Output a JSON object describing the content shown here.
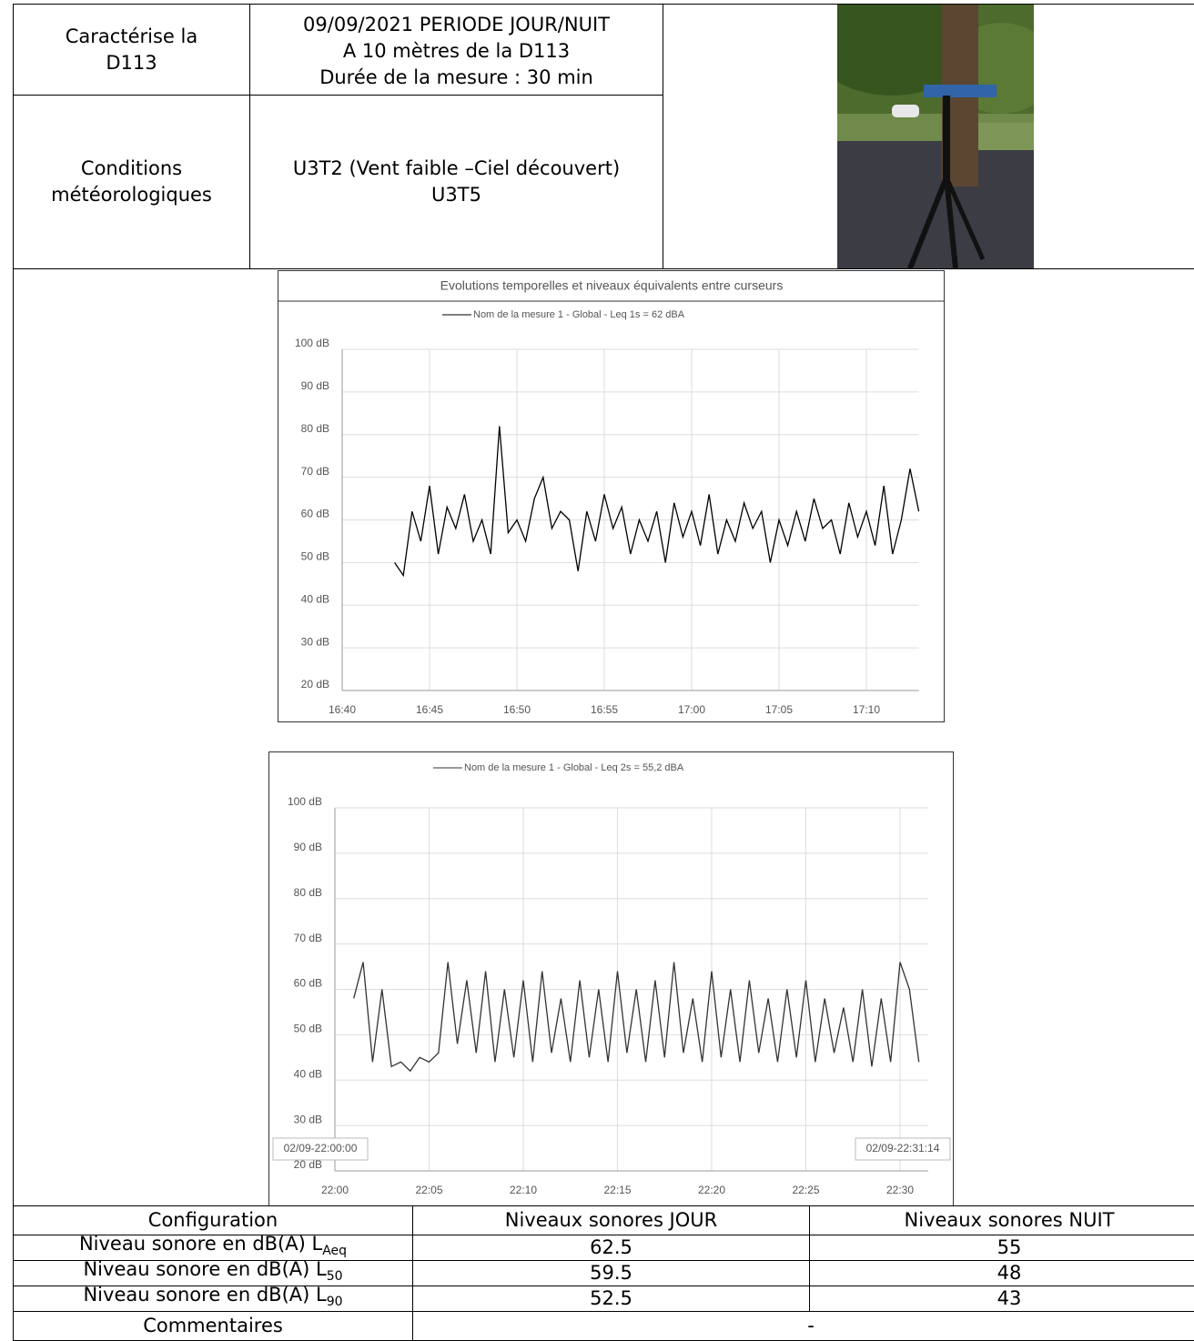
{
  "header": {
    "subject": [
      "Caractérise la",
      "D113"
    ],
    "measure": [
      "09/09/2021 PERIODE JOUR/NUIT",
      "A 10 mètres de la D113",
      "Durée de la mesure : 30 min"
    ],
    "weather_label": [
      "Conditions",
      "météorologiques"
    ],
    "weather": [
      "U3T2 (Vent faible –Ciel découvert)",
      "U3T5"
    ]
  },
  "chart_data": [
    {
      "type": "line",
      "title": "Evolutions temporelles et niveaux équivalents entre curseurs",
      "grid": true,
      "xlim": [
        0,
        33
      ],
      "xticks": [
        {
          "value": 0,
          "label": "16:40"
        },
        {
          "value": 5,
          "label": "16:45"
        },
        {
          "value": 10,
          "label": "16:50"
        },
        {
          "value": 15,
          "label": "16:55"
        },
        {
          "value": 20,
          "label": "17:00"
        },
        {
          "value": 25,
          "label": "17:05"
        },
        {
          "value": 30,
          "label": "17:10"
        }
      ],
      "ylim": [
        20,
        100
      ],
      "yticks": [
        {
          "value": 20,
          "label": "20 dB"
        },
        {
          "value": 30,
          "label": "30 dB"
        },
        {
          "value": 40,
          "label": "40 dB"
        },
        {
          "value": 50,
          "label": "50 dB"
        },
        {
          "value": 60,
          "label": "60 dB"
        },
        {
          "value": 70,
          "label": "70 dB"
        },
        {
          "value": 80,
          "label": "80 dB"
        },
        {
          "value": 90,
          "label": "90 dB"
        },
        {
          "value": 100,
          "label": "100 dB"
        }
      ],
      "x": [
        3,
        3.5,
        4,
        4.5,
        5,
        5.5,
        6,
        6.5,
        7,
        7.5,
        8,
        8.5,
        9,
        9.5,
        10,
        10.5,
        11,
        11.5,
        12,
        12.5,
        13,
        13.5,
        14,
        14.5,
        15,
        15.5,
        16,
        16.5,
        17,
        17.5,
        18,
        18.5,
        19,
        19.5,
        20,
        20.5,
        21,
        21.5,
        22,
        22.5,
        23,
        23.5,
        24,
        24.5,
        25,
        25.5,
        26,
        26.5,
        27,
        27.5,
        28,
        28.5,
        29,
        29.5,
        30,
        30.5,
        31,
        31.5,
        32,
        32.5,
        33
      ],
      "series": [
        {
          "name": "Nom de la mesure 1 - Global - Leq 1s = 62 dBA",
          "color": "#000000",
          "values": [
            50,
            47,
            62,
            55,
            68,
            52,
            63,
            58,
            66,
            55,
            60,
            52,
            82,
            57,
            60,
            55,
            65,
            70,
            58,
            62,
            60,
            48,
            62,
            55,
            66,
            58,
            63,
            52,
            60,
            55,
            62,
            50,
            64,
            56,
            62,
            54,
            66,
            52,
            60,
            55,
            64,
            58,
            62,
            50,
            60,
            54,
            62,
            55,
            65,
            58,
            60,
            52,
            64,
            56,
            62,
            54,
            68,
            52,
            60,
            72,
            62
          ]
        }
      ]
    },
    {
      "type": "line",
      "grid": true,
      "annotations": [
        "02/09-22:00:00",
        "02/09-22:31:14"
      ],
      "xlim": [
        0,
        31.5
      ],
      "xticks": [
        {
          "value": 0,
          "label": "22:00"
        },
        {
          "value": 5,
          "label": "22:05"
        },
        {
          "value": 10,
          "label": "22:10"
        },
        {
          "value": 15,
          "label": "22:15"
        },
        {
          "value": 20,
          "label": "22:20"
        },
        {
          "value": 25,
          "label": "22:25"
        },
        {
          "value": 30,
          "label": "22:30"
        }
      ],
      "ylim": [
        20,
        100
      ],
      "yticks": [
        {
          "value": 20,
          "label": "20 dB"
        },
        {
          "value": 30,
          "label": "30 dB"
        },
        {
          "value": 40,
          "label": "40 dB"
        },
        {
          "value": 50,
          "label": "50 dB"
        },
        {
          "value": 60,
          "label": "60 dB"
        },
        {
          "value": 70,
          "label": "70 dB"
        },
        {
          "value": 80,
          "label": "80 dB"
        },
        {
          "value": 90,
          "label": "90 dB"
        },
        {
          "value": 100,
          "label": "100 dB"
        }
      ],
      "x": [
        1,
        1.5,
        2,
        2.5,
        3,
        3.5,
        4,
        4.5,
        5,
        5.5,
        6,
        6.5,
        7,
        7.5,
        8,
        8.5,
        9,
        9.5,
        10,
        10.5,
        11,
        11.5,
        12,
        12.5,
        13,
        13.5,
        14,
        14.5,
        15,
        15.5,
        16,
        16.5,
        17,
        17.5,
        18,
        18.5,
        19,
        19.5,
        20,
        20.5,
        21,
        21.5,
        22,
        22.5,
        23,
        23.5,
        24,
        24.5,
        25,
        25.5,
        26,
        26.5,
        27,
        27.5,
        28,
        28.5,
        29,
        29.5,
        30,
        30.5,
        31
      ],
      "series": [
        {
          "name": "Nom de la mesure 1 - Global - Leq 2s = 55,2 dBA",
          "color": "#333333",
          "values": [
            58,
            66,
            44,
            60,
            43,
            44,
            42,
            45,
            44,
            46,
            66,
            48,
            62,
            46,
            64,
            44,
            60,
            45,
            62,
            44,
            64,
            46,
            58,
            44,
            62,
            45,
            60,
            44,
            64,
            46,
            60,
            44,
            62,
            45,
            66,
            46,
            58,
            44,
            64,
            45,
            60,
            44,
            62,
            46,
            58,
            44,
            60,
            45,
            62,
            44,
            58,
            46,
            56,
            44,
            60,
            43,
            58,
            44,
            66,
            60,
            44
          ]
        }
      ]
    }
  ],
  "table": {
    "header": [
      "Configuration",
      "Niveaux sonores JOUR",
      "Niveaux sonores NUIT"
    ],
    "rows": [
      {
        "label": "Niveau sonore en dB(A) L",
        "sub": "Aeq",
        "day": "62.5",
        "night": "55"
      },
      {
        "label": "Niveau sonore en dB(A) L",
        "sub": "50",
        "day": "59.5",
        "night": "48"
      },
      {
        "label": "Niveau sonore en dB(A) L",
        "sub": "90",
        "day": "52.5",
        "night": "43"
      }
    ],
    "comment_label": "Commentaires",
    "comment": "-"
  }
}
